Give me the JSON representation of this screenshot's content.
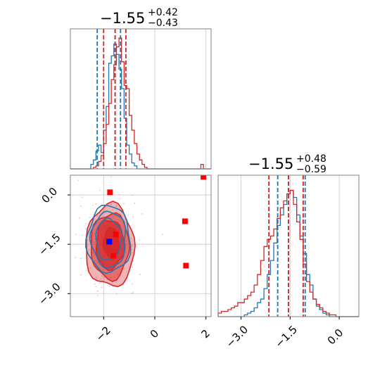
{
  "colors": {
    "series_a": "#1f77b4",
    "series_b": "#d62728",
    "marker_red": "#ff0000",
    "marker_blue": "#0000ff",
    "grid": "#c8c8c8",
    "frame": "#808080"
  },
  "chart_data": {
    "type": "corner",
    "panels": [
      {
        "id": "x-marginal",
        "type": "histogram",
        "title": {
          "center": "−1.55",
          "plus": "+0.42",
          "minus": "−0.43"
        },
        "xlim": [
          -3.3,
          2.2
        ],
        "xticks": [
          -2,
          0,
          2
        ],
        "series": [
          {
            "color": "series_a",
            "quantiles": [
              -2.25,
              -1.55,
              -1.34
            ],
            "bin_start": -3.3,
            "bin_width": 0.1,
            "counts": [
              0,
              0,
              0,
              0,
              0,
              0,
              0,
              0,
              3,
              6,
              12,
              16,
              11,
              26,
              42,
              71,
              76,
              84,
              77,
              67,
              54,
              34,
              16,
              10,
              4,
              2,
              0,
              0,
              0,
              0,
              0,
              0,
              0,
              0,
              0,
              0,
              0,
              0,
              0,
              0,
              0,
              0,
              0,
              0,
              0,
              0,
              0,
              0,
              0,
              0,
              0,
              0,
              0,
              0,
              0
            ]
          },
          {
            "color": "series_b",
            "quantiles": [
              -2.0,
              -1.55,
              -1.13
            ],
            "bin_start": -3.3,
            "bin_width": 0.1,
            "counts": [
              0,
              0,
              0,
              0,
              0,
              0,
              0,
              0,
              0,
              1,
              2,
              5,
              9,
              17,
              30,
              44,
              60,
              70,
              82,
              88,
              72,
              56,
              54,
              36,
              26,
              17,
              10,
              6,
              3,
              1,
              0,
              0,
              0,
              0,
              0,
              0,
              0,
              0,
              0,
              0,
              0,
              0,
              0,
              0,
              0,
              0,
              0,
              0,
              0,
              0,
              0,
              3,
              0,
              0,
              0
            ]
          }
        ]
      },
      {
        "id": "joint",
        "type": "scatter-contour",
        "xlim": [
          -3.3,
          2.2
        ],
        "ylim": [
          -3.7,
          0.6
        ],
        "xticks": [
          -2,
          0,
          2
        ],
        "xtick_labels": [
          "−2",
          "0",
          "2"
        ],
        "yticks": [
          0.0,
          -1.5,
          -3.0
        ],
        "ytick_labels": [
          "0.0",
          "−1.5",
          "−3.0"
        ],
        "center": [
          -1.85,
          -1.45
        ],
        "series_a_contours": [
          {
            "rx": 0.85,
            "ry": 1.02,
            "cx": -1.8,
            "cy": -1.35
          },
          {
            "rx": 0.68,
            "ry": 0.85,
            "cx": -1.8,
            "cy": -1.35
          },
          {
            "rx": 0.5,
            "ry": 0.63,
            "cx": -1.8,
            "cy": -1.35
          }
        ],
        "series_b_contours": [
          {
            "rx": 0.95,
            "ry": 1.25,
            "cx": -1.75,
            "cy": -1.55
          },
          {
            "rx": 0.75,
            "ry": 1.0,
            "cx": -1.75,
            "cy": -1.55
          },
          {
            "rx": 0.55,
            "ry": 0.75,
            "cx": -1.75,
            "cy": -1.5
          },
          {
            "rx": 0.3,
            "ry": 0.45,
            "cx": -1.7,
            "cy": -1.45
          }
        ],
        "red_squares": [
          {
            "x": -1.75,
            "y": 0.08
          },
          {
            "x": -1.52,
            "y": -1.2
          },
          {
            "x": -1.62,
            "y": -1.85
          },
          {
            "x": 1.18,
            "y": -0.8
          },
          {
            "x": 1.22,
            "y": -2.15
          },
          {
            "x": 1.9,
            "y": 0.55
          }
        ],
        "blue_squares": [
          {
            "x": -1.78,
            "y": -1.42
          }
        ]
      },
      {
        "id": "y-marginal",
        "type": "histogram",
        "title": {
          "center": "−1.55",
          "plus": "+0.48",
          "minus": "−0.59"
        },
        "xlim": [
          -3.7,
          0.6
        ],
        "xticks": [
          -3.0,
          -1.5,
          0.0
        ],
        "xtick_labels": [
          "−3.0",
          "−1.5",
          "0.0"
        ],
        "series": [
          {
            "color": "series_a",
            "quantiles": [
              -1.88,
              -1.55,
              -1.04
            ],
            "bin_start": -3.7,
            "bin_width": 0.1,
            "counts": [
              0,
              0,
              0,
              0,
              0,
              0,
              0,
              0,
              1,
              2,
              3,
              5,
              8,
              10,
              16,
              24,
              32,
              42,
              52,
              58,
              64,
              70,
              72,
              68,
              58,
              46,
              36,
              24,
              18,
              10,
              6,
              4,
              2,
              1,
              0,
              0,
              0,
              0,
              0,
              0,
              0,
              0,
              0
            ]
          },
          {
            "color": "series_b",
            "quantiles": [
              -2.15,
              -1.55,
              -1.1
            ],
            "bin_start": -3.7,
            "bin_width": 0.1,
            "counts": [
              2,
              3,
              3,
              4,
              5,
              6,
              8,
              8,
              10,
              12,
              14,
              18,
              24,
              32,
              40,
              44,
              46,
              50,
              56,
              62,
              66,
              70,
              72,
              64,
              54,
              44,
              30,
              20,
              14,
              10,
              7,
              5,
              3,
              2,
              1,
              1,
              0,
              0,
              0,
              0,
              0,
              0,
              0
            ]
          }
        ]
      }
    ]
  }
}
